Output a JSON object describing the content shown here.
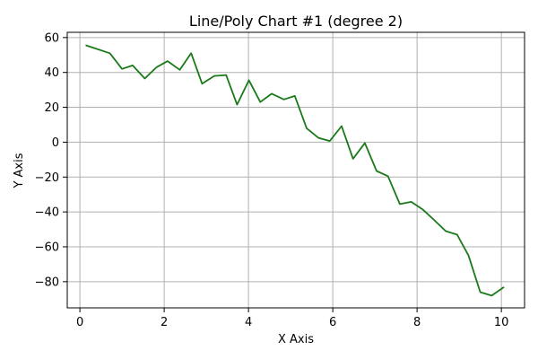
{
  "chart_data": {
    "type": "line",
    "title": "Line/Poly Chart #1 (degree 2)",
    "xlabel": "X Axis",
    "ylabel": "Y Axis",
    "xlim": [
      -0.3,
      10.55
    ],
    "ylim": [
      -95,
      63
    ],
    "xticks": [
      0,
      2,
      4,
      6,
      8,
      10
    ],
    "yticks": [
      -80,
      -60,
      -40,
      -20,
      0,
      20,
      40,
      60
    ],
    "grid": true,
    "colors": {
      "line": "#1a7a1a"
    },
    "series": [
      {
        "x": [
          0.15,
          0.71,
          1.0,
          1.25,
          1.54,
          1.82,
          2.08,
          2.37,
          2.64,
          2.9,
          3.19,
          3.47,
          3.73,
          4.01,
          4.28,
          4.55,
          4.84,
          5.1,
          5.38,
          5.66,
          5.93,
          6.21,
          6.48,
          6.76,
          7.04,
          7.31,
          7.59,
          7.86,
          8.13,
          8.39,
          8.68,
          8.95,
          9.22,
          9.5,
          9.77,
          10.05
        ],
        "y": [
          55.5,
          51,
          42,
          44,
          36.5,
          43,
          46.5,
          41.5,
          51,
          33.5,
          38,
          38.5,
          21.5,
          35.5,
          23,
          27.8,
          24.5,
          26.5,
          8,
          2.5,
          0.7,
          9.2,
          -9.5,
          -0.5,
          -16.5,
          -19.5,
          -35.5,
          -34.2,
          -38.5,
          -44.3,
          -51,
          -53,
          -65,
          -86,
          -88,
          -83.3
        ]
      }
    ]
  }
}
